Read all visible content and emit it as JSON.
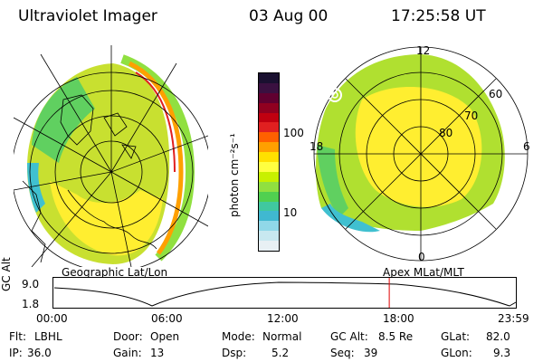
{
  "header": {
    "instrument": "Ultraviolet Imager",
    "date": "03 Aug 00",
    "time": "17:25:58 UT"
  },
  "colorbar": {
    "unit_label": "photon cm⁻²s⁻¹",
    "ticks": [
      "100",
      "10"
    ],
    "colors": [
      "#1a1030",
      "#3a1040",
      "#600030",
      "#900020",
      "#c00010",
      "#e02020",
      "#ff6000",
      "#ffa000",
      "#ffe000",
      "#ffff40",
      "#c8f000",
      "#90e040",
      "#50d050",
      "#40c8a0",
      "#40b8d0",
      "#90d8e8",
      "#c8e8f0",
      "#e8f0f4"
    ]
  },
  "left_panel": {
    "label": "Geographic Lat/Lon"
  },
  "right_panel": {
    "label": "Apex MLat/MLT",
    "mlt_labels": {
      "top": "12",
      "left": "18",
      "right": "6",
      "bottom": "0"
    },
    "lat_labels": [
      "60",
      "70",
      "80"
    ]
  },
  "timeline": {
    "axis_label": "GC Alt",
    "y_ticks": [
      "9.0",
      "1.8"
    ],
    "x_ticks": [
      "00:00",
      "06:00",
      "12:00",
      "18:00",
      "23:59"
    ],
    "current_marker_hours": 17.43,
    "marker_color": "#e00000"
  },
  "info": {
    "flt_label": "Flt:",
    "flt_value": "LBHL",
    "ip_label": "IP:",
    "ip_value": "36.0",
    "door_label": "Door:",
    "door_value": "Open",
    "gain_label": "Gain:",
    "gain_value": "13",
    "mode_label": "Mode:",
    "mode_value": "Normal",
    "dsp_label": "Dsp:",
    "dsp_value": "5.2",
    "gcalt_label": "GC Alt:",
    "gcalt_value": "8.5 Re",
    "seq_label": "Seq:",
    "seq_value": "39",
    "glat_label": "GLat:",
    "glat_value": "82.0",
    "glon_label": "GLon:",
    "glon_value": "9.3"
  }
}
